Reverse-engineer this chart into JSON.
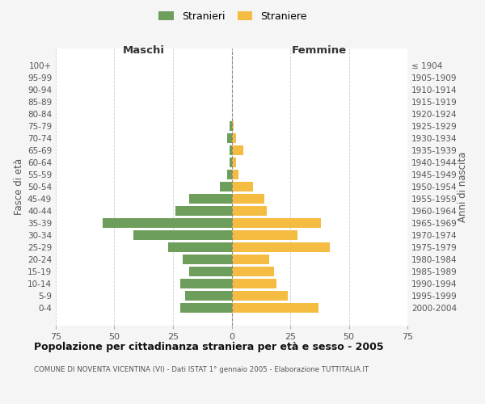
{
  "age_groups": [
    "100+",
    "95-99",
    "90-94",
    "85-89",
    "80-84",
    "75-79",
    "70-74",
    "65-69",
    "60-64",
    "55-59",
    "50-54",
    "45-49",
    "40-44",
    "35-39",
    "30-34",
    "25-29",
    "20-24",
    "15-19",
    "10-14",
    "5-9",
    "0-4"
  ],
  "birth_years": [
    "≤ 1904",
    "1905-1909",
    "1910-1914",
    "1915-1919",
    "1920-1924",
    "1925-1929",
    "1930-1934",
    "1935-1939",
    "1940-1944",
    "1945-1949",
    "1950-1954",
    "1955-1959",
    "1960-1964",
    "1965-1969",
    "1970-1974",
    "1975-1979",
    "1980-1984",
    "1985-1989",
    "1990-1994",
    "1995-1999",
    "2000-2004"
  ],
  "maschi": [
    0,
    0,
    0,
    0,
    0,
    1,
    2,
    1,
    1,
    2,
    5,
    18,
    24,
    55,
    42,
    27,
    21,
    18,
    22,
    20,
    22
  ],
  "femmine": [
    0,
    0,
    0,
    0,
    0,
    1,
    2,
    5,
    2,
    3,
    9,
    14,
    15,
    38,
    28,
    42,
    16,
    18,
    19,
    24,
    37
  ],
  "male_color": "#6d9e5b",
  "female_color": "#f5bc42",
  "background_color": "#f5f5f5",
  "plot_bg_color": "#ffffff",
  "grid_color": "#cccccc",
  "title": "Popolazione per cittadinanza straniera per età e sesso - 2005",
  "subtitle": "COMUNE DI NOVENTA VICENTINA (VI) - Dati ISTAT 1° gennaio 2005 - Elaborazione TUTTITALIA.IT",
  "ylabel_left": "Fasce di età",
  "ylabel_right": "Anni di nascita",
  "xlabel_left": "Maschi",
  "xlabel_right": "Femmine",
  "legend_stranieri": "Stranieri",
  "legend_straniere": "Straniere",
  "xlim": 75
}
